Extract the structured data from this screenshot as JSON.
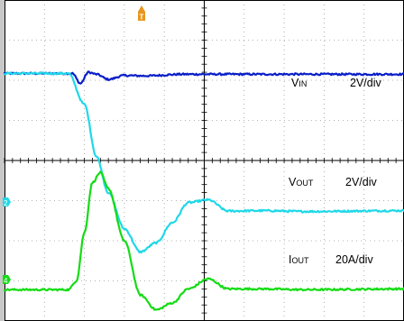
{
  "chart_data": {
    "type": "line",
    "title": "",
    "xlabel": "",
    "ylabel": "",
    "grid": true,
    "x_divisions": 10,
    "y_divisions": 8,
    "xlim": [
      -1.0,
      9.0
    ],
    "ylim": [
      -4.0,
      4.0
    ],
    "series": [
      {
        "id": "vin",
        "name_main": "V",
        "name_sub": "IN",
        "scale": "2V/div",
        "color": "#0a1fc8",
        "x": [
          -1.0,
          0.7,
          0.9,
          1.1,
          1.3,
          1.6,
          2.0,
          2.5,
          3.5,
          5.0,
          7.0,
          9.0
        ],
        "y": [
          2.17,
          2.17,
          1.92,
          2.2,
          2.15,
          2.02,
          2.12,
          2.11,
          2.15,
          2.15,
          2.15,
          2.15
        ]
      },
      {
        "id": "vout",
        "name_main": "V",
        "name_sub": "OUT",
        "scale": "2V/div",
        "color": "#1fd8e8",
        "x": [
          -1.0,
          0.6,
          1.0,
          1.3,
          1.6,
          2.0,
          2.4,
          2.8,
          3.2,
          3.6,
          4.1,
          4.6,
          5.5,
          6.5,
          9.0
        ],
        "y": [
          2.17,
          2.17,
          1.4,
          0.1,
          -0.8,
          -1.7,
          -2.28,
          -2.05,
          -1.55,
          -1.05,
          -0.98,
          -1.26,
          -1.25,
          -1.27,
          -1.25
        ]
      },
      {
        "id": "iout",
        "name_main": "I",
        "name_sub": "OUT",
        "scale": "20A/div",
        "color": "#14dc14",
        "x": [
          -1.0,
          0.6,
          0.8,
          1.0,
          1.2,
          1.4,
          1.6,
          2.0,
          2.4,
          2.8,
          3.2,
          3.6,
          4.1,
          4.6,
          5.5,
          6.5,
          9.0
        ],
        "y": [
          -3.22,
          -3.22,
          -3.0,
          -1.8,
          -0.55,
          -0.3,
          -0.7,
          -2.0,
          -3.35,
          -3.72,
          -3.55,
          -3.2,
          -2.95,
          -3.2,
          -3.2,
          -3.22,
          -3.2
        ]
      }
    ],
    "channel_markers": [
      "2",
      "4"
    ],
    "trigger_marker": "T"
  }
}
